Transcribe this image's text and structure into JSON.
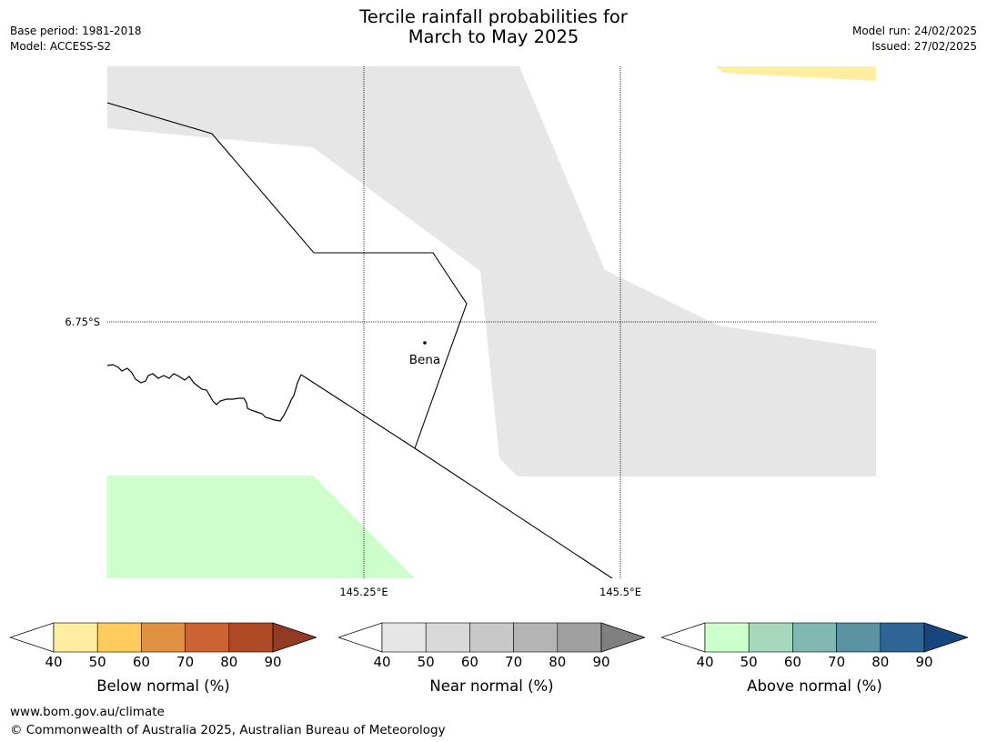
{
  "header": {
    "title_line1": "Tercile rainfall probabilities for",
    "title_line2": "March to May 2025",
    "base_period": "Base period: 1981-2018",
    "model": "Model: ACCESS-S2",
    "model_run": "Model run: 24/02/2025",
    "issued": "Issued: 27/02/2025"
  },
  "map": {
    "place_label": "Bena",
    "lat_label": "6.75°S",
    "lon_labels": [
      "145.25°E",
      "145.5°E"
    ],
    "region_colors": {
      "near_normal_40_50": "#e6e6e6",
      "above_normal_40_50": "#ccffcc",
      "below_normal_40_50": "#ffeda0"
    }
  },
  "legends": [
    {
      "label": "Below normal (%)",
      "ticks": [
        "40",
        "50",
        "60",
        "70",
        "80",
        "90"
      ],
      "colors": [
        "#ffeda0",
        "#fecc5c",
        "#e0913f",
        "#cd6333",
        "#b04a26",
        "#923a22"
      ]
    },
    {
      "label": "Near normal (%)",
      "ticks": [
        "40",
        "50",
        "60",
        "70",
        "80",
        "90"
      ],
      "colors": [
        "#e6e6e6",
        "#d9d9d9",
        "#c8c8c8",
        "#b4b4b4",
        "#a0a0a0",
        "#808080"
      ]
    },
    {
      "label": "Above normal (%)",
      "ticks": [
        "40",
        "50",
        "60",
        "70",
        "80",
        "90"
      ],
      "colors": [
        "#ccffcc",
        "#a6d8bb",
        "#80b8b1",
        "#5b92a0",
        "#2f6497",
        "#17457d"
      ]
    }
  ],
  "footer": {
    "url": "www.bom.gov.au/climate",
    "copyright": "© Commonwealth of Australia 2025, Australian Bureau of Meteorology"
  }
}
